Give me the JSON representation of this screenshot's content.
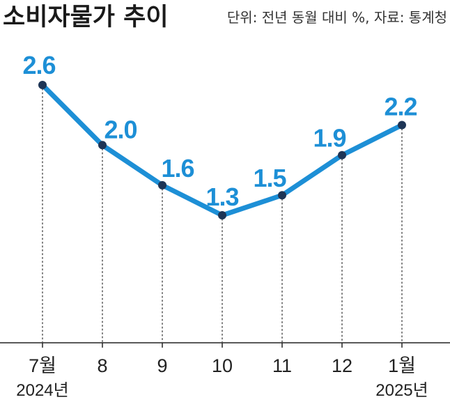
{
  "header": {
    "title": "소비자물가 추이",
    "unit_note": "단위: 전년 동월 대비 %, 자료: 통계청"
  },
  "chart_data": {
    "type": "line",
    "title": "소비자물가 추이",
    "unit": "단위: 전년 동월 대비 %",
    "source": "자료: 통계청",
    "categories": [
      "7월",
      "8",
      "9",
      "10",
      "11",
      "12",
      "1월"
    ],
    "values": [
      2.6,
      2.0,
      1.6,
      1.3,
      1.5,
      1.9,
      2.2
    ],
    "value_labels": [
      "2.6",
      "2.0",
      "1.6",
      "1.3",
      "1.5",
      "1.9",
      "2.2"
    ],
    "year_labels": [
      {
        "category": "7월",
        "text": "2024년"
      },
      {
        "category": "1월",
        "text": "2025년"
      }
    ],
    "xlabel": "",
    "ylabel": "",
    "grid": false,
    "legend": "none"
  },
  "colors": {
    "line": "#1d8fd6",
    "marker": "#1e3556",
    "label": "#1d8fd6",
    "axis": "#222222",
    "dotted": "#555555",
    "text": "#222222"
  }
}
